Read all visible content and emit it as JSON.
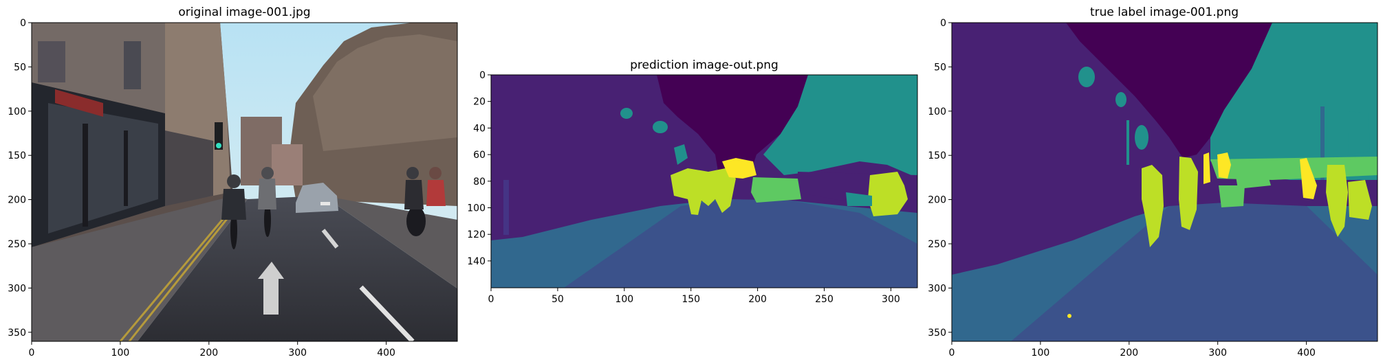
{
  "figure": {
    "panels": [
      {
        "title": "original image-001.jpg",
        "content": "street photo",
        "x_ticks": [
          "0",
          "100",
          "200",
          "300",
          "400"
        ],
        "y_ticks": [
          "0",
          "50",
          "100",
          "150",
          "200",
          "250",
          "300",
          "350"
        ]
      },
      {
        "title": "prediction image-out.png",
        "content": "segmentation mask (viridis)",
        "x_ticks": [
          "0",
          "50",
          "100",
          "150",
          "200",
          "250",
          "300"
        ],
        "y_ticks": [
          "0",
          "20",
          "40",
          "60",
          "80",
          "100",
          "120",
          "140"
        ]
      },
      {
        "title": "true label image-001.png",
        "content": "segmentation mask (viridis)",
        "x_ticks": [
          "0",
          "100",
          "200",
          "300",
          "400"
        ],
        "y_ticks": [
          "0",
          "50",
          "100",
          "150",
          "200",
          "250",
          "300",
          "350"
        ]
      }
    ]
  },
  "colors": {
    "sky_class": "#440154",
    "building_class": "#482173",
    "sidewalk_class": "#31688e",
    "road_class": "#3b528b",
    "tree_class": "#21918c",
    "car_class": "#5ec962",
    "pedestrian_class": "#bddf26",
    "sign_class": "#fde725"
  }
}
